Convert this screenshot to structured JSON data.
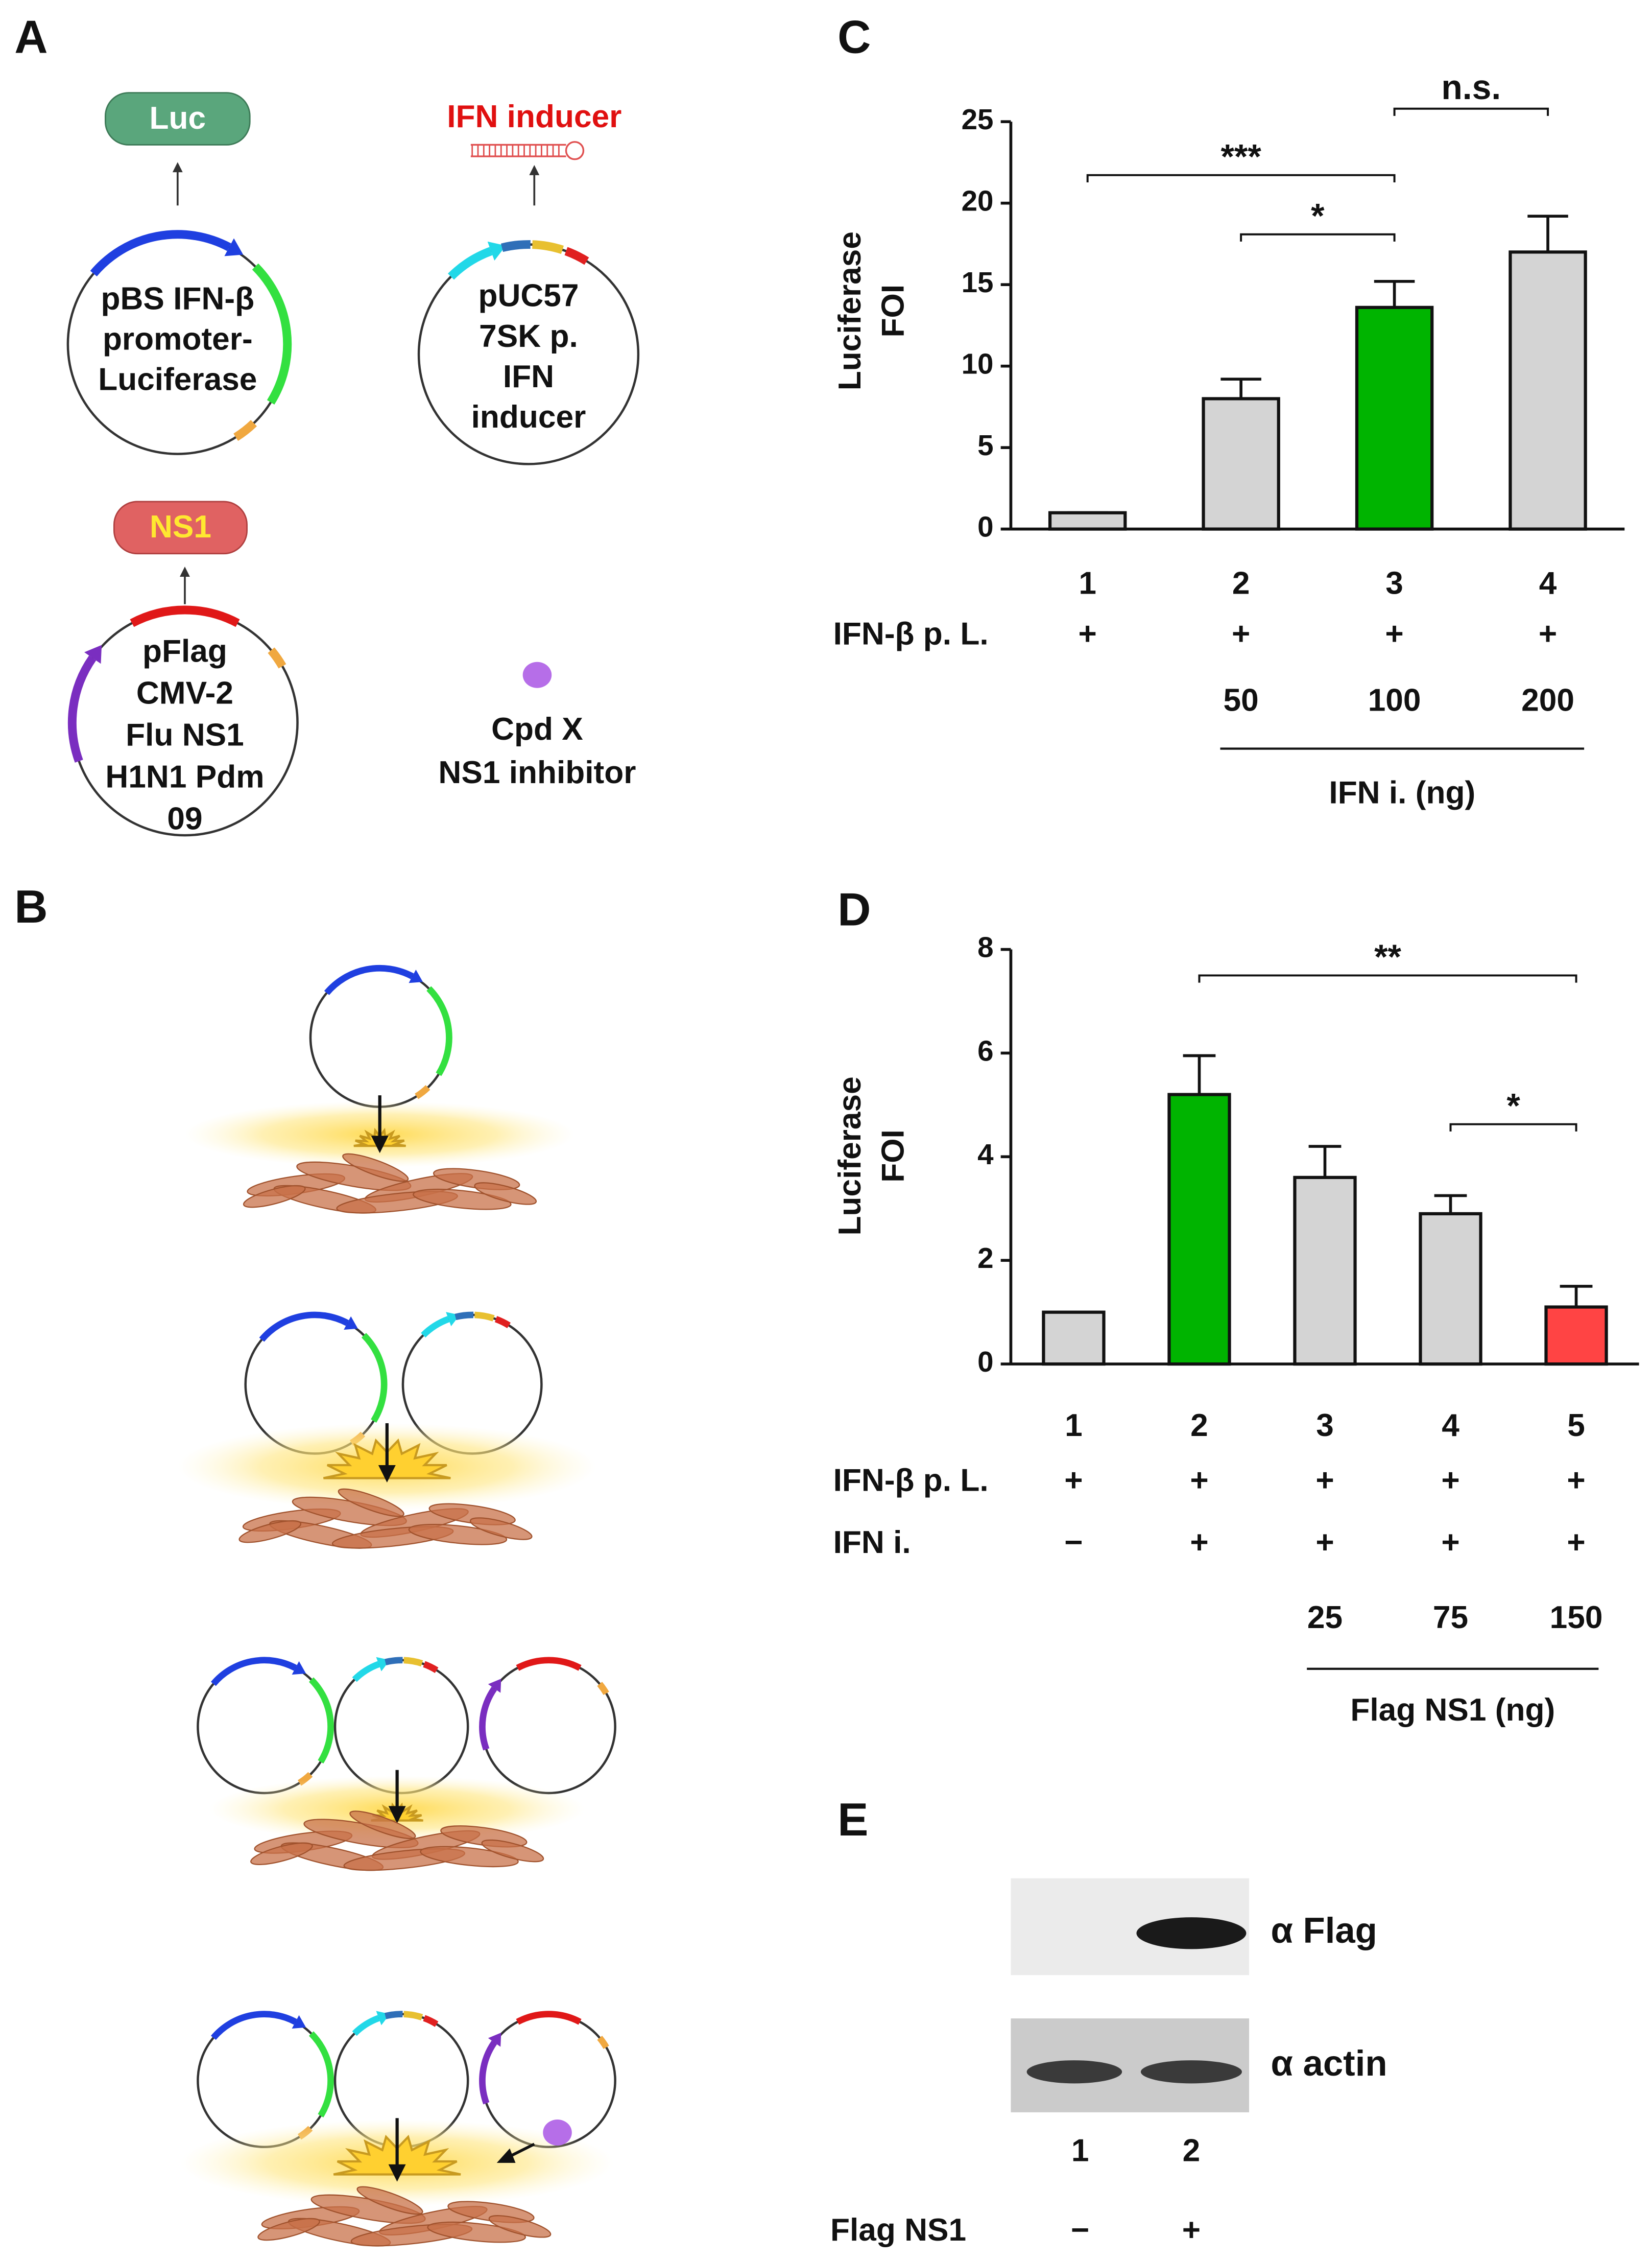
{
  "panels": {
    "a": "A",
    "b": "B",
    "c": "C",
    "d": "D",
    "e": "E"
  },
  "diagram_a": {
    "luc": "Luc",
    "ifn_inducer": "IFN inducer",
    "plasmid1": [
      "pBS IFN-β",
      "promoter-",
      "Luciferase"
    ],
    "plasmid2": [
      "pUC57",
      "7SK p.",
      "IFN",
      "inducer"
    ],
    "ns1": "NS1",
    "plasmid3": [
      "pFlag",
      "CMV-2",
      "Flu NS1",
      "H1N1 Pdm",
      "09"
    ],
    "cpd": [
      "Cpd X",
      "NS1 inhibitor"
    ]
  },
  "chart_data": [
    {
      "type": "bar",
      "y_label": [
        "Luciferase",
        "FOI"
      ],
      "categories": [
        "1",
        "2",
        "3",
        "4"
      ],
      "values": [
        1,
        8,
        13.6,
        17
      ],
      "errors": [
        0,
        1.2,
        1.6,
        2.2
      ],
      "colors": [
        "#d4d4d4",
        "#d4d4d4",
        "#00b400",
        "#d4d4d4"
      ],
      "ylim": [
        0,
        25
      ],
      "yticks": [
        0,
        5,
        10,
        15,
        20,
        25
      ],
      "rows": [
        {
          "label": "IFN-β p. L.",
          "values": [
            "+",
            "+",
            "+",
            "+"
          ]
        }
      ],
      "dose": {
        "label": "IFN i. (ng)",
        "values": [
          null,
          "50",
          "100",
          "200"
        ]
      },
      "brackets": [
        {
          "from": "1",
          "to": "3",
          "label": "***"
        },
        {
          "from": "2",
          "to": "3",
          "label": "*"
        },
        {
          "from": "3",
          "to": "4",
          "label": "n.s."
        }
      ]
    },
    {
      "type": "bar",
      "y_label": [
        "Luciferase",
        "FOI"
      ],
      "categories": [
        "1",
        "2",
        "3",
        "4",
        "5"
      ],
      "values": [
        1,
        5.2,
        3.6,
        2.9,
        1.1
      ],
      "errors": [
        0,
        0.75,
        0.6,
        0.35,
        0.4
      ],
      "colors": [
        "#d4d4d4",
        "#00b400",
        "#d4d4d4",
        "#d4d4d4",
        "#ff4444"
      ],
      "ylim": [
        0,
        8
      ],
      "yticks": [
        0,
        2,
        4,
        6,
        8
      ],
      "rows": [
        {
          "label": "IFN-β p. L.",
          "values": [
            "+",
            "+",
            "+",
            "+",
            "+"
          ]
        },
        {
          "label": "IFN i.",
          "values": [
            "−",
            "+",
            "+",
            "+",
            "+"
          ]
        }
      ],
      "dose": {
        "label": "Flag NS1 (ng)",
        "values": [
          null,
          null,
          "25",
          "75",
          "150"
        ]
      },
      "brackets": [
        {
          "from": "2",
          "to": "5",
          "label": "**"
        },
        {
          "from": "4",
          "to": "5",
          "label": "*"
        }
      ]
    }
  ],
  "blot": {
    "antibodies": [
      "α Flag",
      "α actin"
    ],
    "lanes": [
      "1",
      "2"
    ],
    "row": {
      "label": "Flag NS1",
      "values": [
        "−",
        "+"
      ]
    }
  }
}
